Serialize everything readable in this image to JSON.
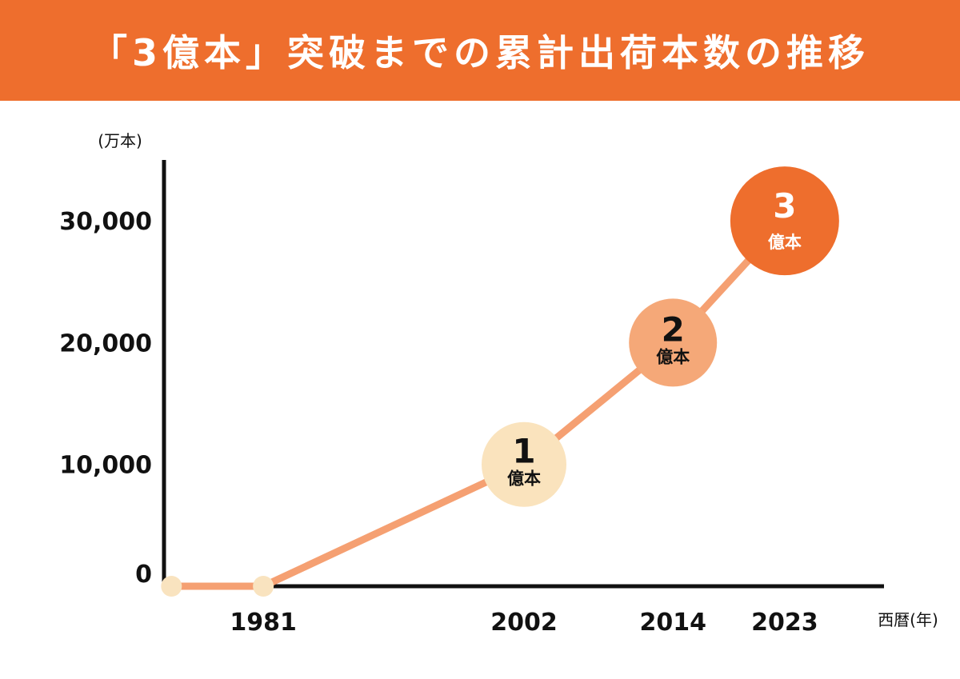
{
  "header": {
    "title": "「3億本」突破までの累計出荷本数の推移"
  },
  "colors": {
    "header_bg": "#ee6e2d",
    "line": "#f5a072",
    "start_point": "#f9e3bf",
    "axis": "#111111"
  },
  "chart_data": {
    "type": "line",
    "title": "「3億本」突破までの累計出荷本数の推移",
    "ylabel": "(万本)",
    "xlabel": "西暦(年)",
    "ylim": [
      0,
      35000
    ],
    "xlim": [
      1973,
      2031
    ],
    "y_ticks": [
      {
        "value": 0,
        "label": "0"
      },
      {
        "value": 10000,
        "label": "10,000"
      },
      {
        "value": 20000,
        "label": "20,000"
      },
      {
        "value": 30000,
        "label": "30,000"
      }
    ],
    "x_ticks": [
      {
        "value": 1981,
        "label": "1981"
      },
      {
        "value": 2002,
        "label": "2002"
      },
      {
        "value": 2014,
        "label": "2014"
      },
      {
        "value": 2023,
        "label": "2023"
      }
    ],
    "series": [
      {
        "points": [
          {
            "x": 1973.6,
            "y": 0
          },
          {
            "x": 1981,
            "y": 0
          },
          {
            "x": 2002,
            "y": 10000
          },
          {
            "x": 2014,
            "y": 20000
          },
          {
            "x": 2023,
            "y": 30000
          }
        ]
      }
    ],
    "start_markers": [
      {
        "x": 1973.6,
        "y": 0
      },
      {
        "x": 1981,
        "y": 0
      }
    ],
    "milestones": [
      {
        "x": 2002,
        "y": 10000,
        "number": "1",
        "unit": "億本",
        "fill": "#fae3bd",
        "text_color": "#111111"
      },
      {
        "x": 2014,
        "y": 20000,
        "number": "2",
        "unit": "億本",
        "fill": "#f5a878",
        "text_color": "#111111"
      },
      {
        "x": 2023,
        "y": 30000,
        "number": "3",
        "unit": "億本",
        "fill": "#ee6e2d",
        "text_color": "#ffffff"
      }
    ]
  }
}
